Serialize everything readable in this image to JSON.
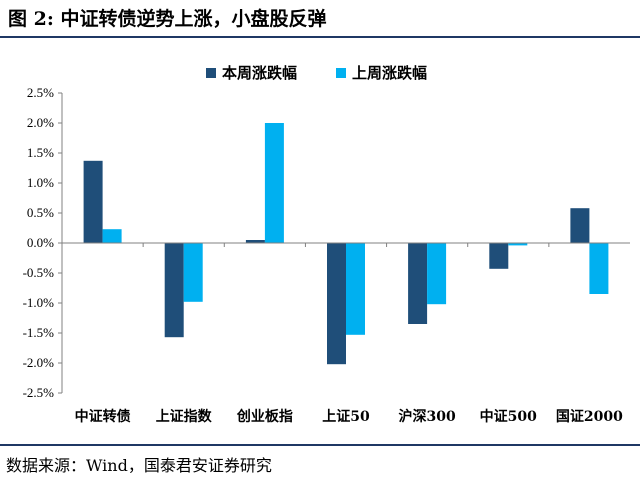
{
  "header": {
    "title": "图 2:  中证转债逆势上涨，小盘股反弹"
  },
  "footer": {
    "source": "数据来源：Wind，国泰君安证券研究"
  },
  "colors": {
    "series1": "#1f4e79",
    "series2": "#00b0f0",
    "rule": "#1f3864"
  },
  "chart_data": {
    "type": "bar",
    "title": "",
    "xlabel": "",
    "ylabel": "",
    "categories": [
      "中证转债",
      "上证指数",
      "创业板指",
      "上证50",
      "沪深300",
      "中证500",
      "国证2000"
    ],
    "series": [
      {
        "name": "本周涨跌幅",
        "values": [
          1.37,
          -1.57,
          0.05,
          -2.02,
          -1.35,
          -0.43,
          0.58
        ]
      },
      {
        "name": "上周涨跌幅",
        "values": [
          0.23,
          -0.98,
          2.0,
          -1.53,
          -1.02,
          -0.04,
          -0.85
        ]
      }
    ],
    "ylim": [
      -2.5,
      2.5
    ],
    "yticks": [
      2.5,
      2.0,
      1.5,
      1.0,
      0.5,
      0.0,
      -0.5,
      -1.0,
      -1.5,
      -2.0,
      -2.5
    ],
    "ytick_labels": [
      "2.5%",
      "2.0%",
      "1.5%",
      "1.0%",
      "0.5%",
      "0.0%",
      "-0.5%",
      "-1.0%",
      "-1.5%",
      "-2.0%",
      "-2.5%"
    ],
    "grid": false,
    "legend_position": "top-center"
  }
}
